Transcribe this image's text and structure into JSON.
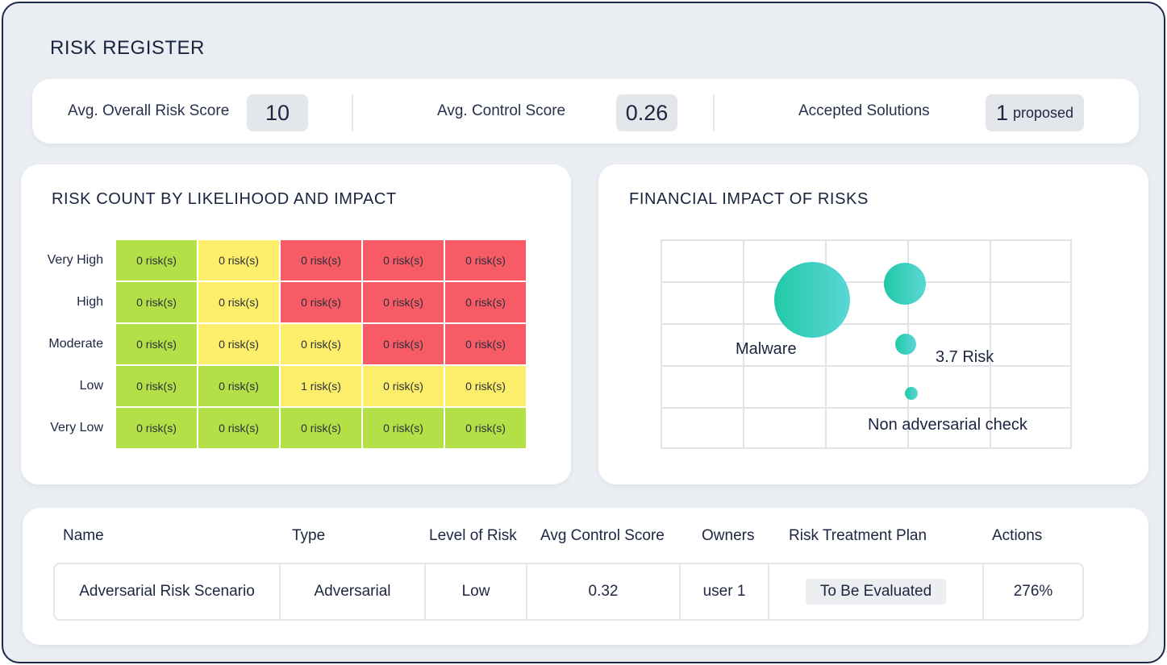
{
  "page": {
    "title": "RISK REGISTER"
  },
  "summary": {
    "avg_risk_label": "Avg. Overall Risk Score",
    "avg_risk_value": "10",
    "avg_control_label": "Avg. Control Score",
    "avg_control_value": "0.26",
    "accepted_label": "Accepted Solutions",
    "accepted_value": "1",
    "accepted_suffix": "proposed"
  },
  "heatmap": {
    "title": "RISK COUNT BY LIKELIHOOD AND IMPACT",
    "rows": [
      {
        "label": "Very High",
        "cells": [
          {
            "text": "0 risk(s)",
            "level": "g"
          },
          {
            "text": "0 risk(s)",
            "level": "y"
          },
          {
            "text": "0 risk(s)",
            "level": "r"
          },
          {
            "text": "0 risk(s)",
            "level": "r"
          },
          {
            "text": "0 risk(s)",
            "level": "r"
          }
        ]
      },
      {
        "label": "High",
        "cells": [
          {
            "text": "0 risk(s)",
            "level": "g"
          },
          {
            "text": "0 risk(s)",
            "level": "y"
          },
          {
            "text": "0 risk(s)",
            "level": "r"
          },
          {
            "text": "0 risk(s)",
            "level": "r"
          },
          {
            "text": "0 risk(s)",
            "level": "r"
          }
        ]
      },
      {
        "label": "Moderate",
        "cells": [
          {
            "text": "0 risk(s)",
            "level": "g"
          },
          {
            "text": "0 risk(s)",
            "level": "y"
          },
          {
            "text": "0 risk(s)",
            "level": "y"
          },
          {
            "text": "0 risk(s)",
            "level": "r"
          },
          {
            "text": "0 risk(s)",
            "level": "r"
          }
        ]
      },
      {
        "label": "Low",
        "cells": [
          {
            "text": "0 risk(s)",
            "level": "g"
          },
          {
            "text": "0 risk(s)",
            "level": "g"
          },
          {
            "text": "1 risk(s)",
            "level": "y"
          },
          {
            "text": "0 risk(s)",
            "level": "y"
          },
          {
            "text": "0 risk(s)",
            "level": "y"
          }
        ]
      },
      {
        "label": "Very Low",
        "cells": [
          {
            "text": "0 risk(s)",
            "level": "g"
          },
          {
            "text": "0 risk(s)",
            "level": "g"
          },
          {
            "text": "0 risk(s)",
            "level": "g"
          },
          {
            "text": "0 risk(s)",
            "level": "g"
          },
          {
            "text": "0 risk(s)",
            "level": "g"
          }
        ]
      }
    ],
    "colors": {
      "g": "#b3df47",
      "y": "#fcee6a",
      "r": "#f65b66"
    }
  },
  "financial": {
    "title": "FINANCIAL IMPACT OF RISKS",
    "labels": [
      "Malware",
      "3.7 Risk",
      "Non adversarial check"
    ],
    "bubble_color": "#2fcfae"
  },
  "table": {
    "headers": [
      "Name",
      "Type",
      "Level of Risk",
      "Avg Control Score",
      "Owners",
      "Risk Treatment Plan",
      "Actions"
    ],
    "row": {
      "name": "Adversarial Risk Scenario",
      "type": "Adversarial",
      "level": "Low",
      "avg_control": "0.32",
      "owner": "user 1",
      "plan": "To Be Evaluated",
      "actions": "276%"
    }
  }
}
